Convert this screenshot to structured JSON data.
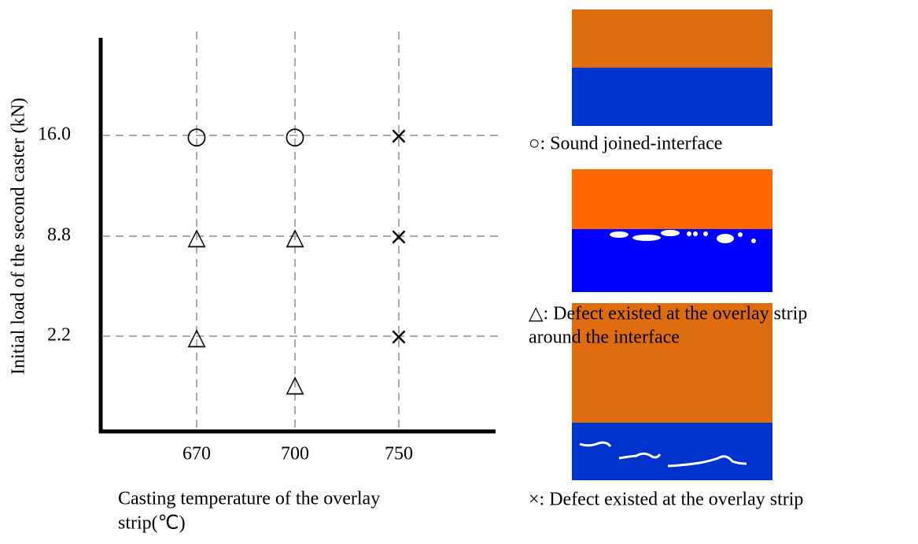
{
  "x_axis": {
    "title_lines": [
      "Casting temperature of the overlay",
      "strip(℃)"
    ],
    "ticks": [
      "670",
      "700",
      "750"
    ]
  },
  "y_axis": {
    "title": "Initial load of the second caster (kN)",
    "ticks": [
      "16.0",
      "8.8",
      "2.2",
      null
    ]
  },
  "grid": {
    "rows": [
      [
        "○",
        "○",
        "×"
      ],
      [
        "△",
        "△",
        "×"
      ],
      [
        "△",
        null,
        "×"
      ],
      [
        null,
        "△",
        null
      ]
    ]
  },
  "legend": [
    {
      "lines": [
        "○: Sound joined-interface"
      ]
    },
    {
      "lines": [
        "△: Defect existed at the overlay strip",
        " around the interface"
      ]
    },
    {
      "lines": [
        "×: Defect existed at the overlay strip"
      ]
    }
  ]
}
